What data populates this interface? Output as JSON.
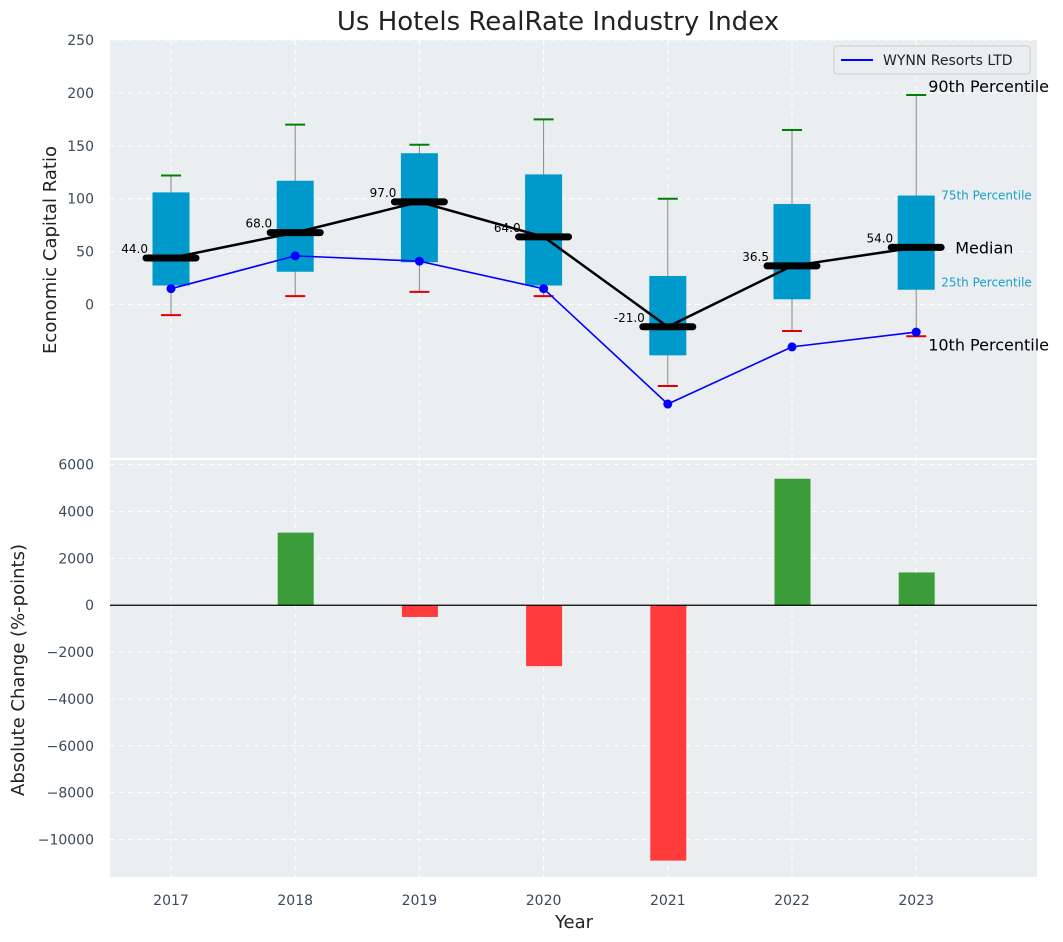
{
  "chart_data": [
    {
      "type": "box",
      "title": "Us Hotels RealRate Industry Index",
      "ylabel": "Economic Capital Ratio",
      "xlabel": "",
      "ylim": [
        -145,
        250
      ],
      "yticks": [
        0,
        50,
        100,
        150,
        200,
        250
      ],
      "categories": [
        "2017",
        "2018",
        "2019",
        "2020",
        "2021",
        "2022",
        "2023"
      ],
      "grid": true,
      "legend": {
        "position": "top-right",
        "entries": [
          "WYNN Resorts LTD"
        ]
      },
      "percentiles": {
        "p10": [
          -10,
          8,
          12,
          8,
          -77,
          -25,
          -30
        ],
        "p25": [
          18,
          31,
          40,
          18,
          -48,
          5,
          14
        ],
        "median": [
          44,
          68,
          97,
          64,
          -21,
          36.5,
          54
        ],
        "p75": [
          106,
          117,
          143,
          123,
          27,
          95,
          103
        ],
        "p90": [
          122,
          170,
          151,
          175,
          100,
          165,
          198
        ]
      },
      "median_labels": [
        "44.0",
        "68.0",
        "97.0",
        "64.0",
        "-21.0",
        "36.5",
        "54.0"
      ],
      "series": [
        {
          "name": "WYNN Resorts LTD",
          "color": "#0000ff",
          "values": [
            15,
            46,
            41,
            15,
            -94,
            -40,
            -26
          ]
        }
      ],
      "annotations": {
        "p90": "90th Percentile",
        "p75": "75th Percentile",
        "median": "Median",
        "p25": "25th Percentile",
        "p10": "10th Percentile"
      },
      "colors": {
        "box": "#0099cc",
        "median": "#000000",
        "p90_cap": "#008000",
        "p10_cap": "#e00000",
        "whisker": "#888888"
      }
    },
    {
      "type": "bar",
      "ylabel": "Absolute Change (%-points)",
      "xlabel": "Year",
      "ylim": [
        -11600,
        6200
      ],
      "yticks": [
        -10000,
        -8000,
        -6000,
        -4000,
        -2000,
        0,
        2000,
        4000,
        6000
      ],
      "ytick_labels": [
        "−10000",
        "−8000",
        "−6000",
        "−4000",
        "−2000",
        "0",
        "2000",
        "4000",
        "6000"
      ],
      "categories": [
        "2017",
        "2018",
        "2019",
        "2020",
        "2021",
        "2022",
        "2023"
      ],
      "values": [
        0,
        3100,
        -500,
        -2600,
        -10900,
        5400,
        1400
      ],
      "grid": true,
      "colors": {
        "positive": "#3a9d3a",
        "negative": "#ff3b3b"
      }
    }
  ]
}
